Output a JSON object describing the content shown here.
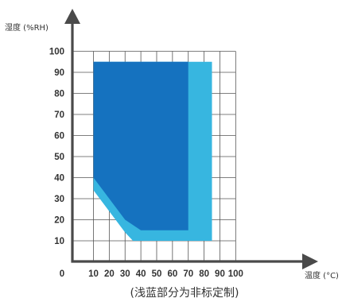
{
  "chart_data": {
    "type": "area",
    "ylabel": "湿度 (%RH)",
    "xlabel": "温度 (°C)",
    "caption": "(浅蓝部分为非标定制)",
    "origin_label": "0",
    "x_ticks": [
      "10",
      "20",
      "30",
      "40",
      "50",
      "60",
      "70",
      "80",
      "90",
      "100"
    ],
    "y_ticks": [
      "10",
      "20",
      "30",
      "40",
      "50",
      "60",
      "70",
      "80",
      "90",
      "100"
    ],
    "xlim": [
      0,
      100
    ],
    "ylim": [
      0,
      100
    ],
    "grid": true,
    "colors": {
      "standard": "#1572bf",
      "custom": "#37b6e0",
      "axis": "#4a4a4a",
      "grid": "#555555"
    },
    "series": [
      {
        "color_key": "custom",
        "points": [
          [
            10,
            95
          ],
          [
            85,
            95
          ],
          [
            85,
            10
          ],
          [
            35,
            10
          ],
          [
            30,
            14
          ],
          [
            10,
            34
          ]
        ]
      },
      {
        "color_key": "standard",
        "points": [
          [
            10,
            95
          ],
          [
            70,
            95
          ],
          [
            70,
            15
          ],
          [
            40,
            15
          ],
          [
            30,
            20
          ],
          [
            10,
            40
          ]
        ]
      }
    ]
  }
}
